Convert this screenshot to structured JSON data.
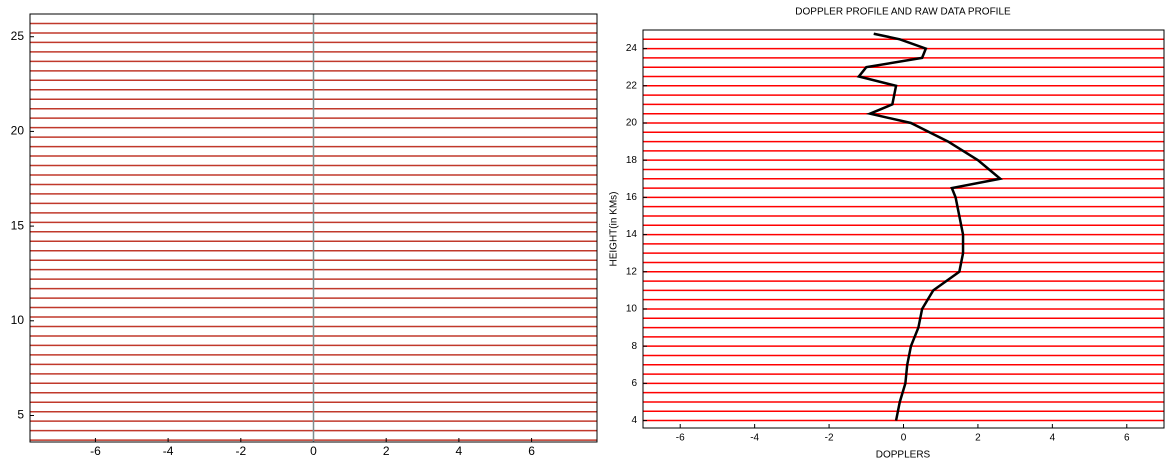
{
  "chart_data": [
    {
      "type": "spectra",
      "line_color": "#c0392b",
      "zero_line_color": "#7f8c8d",
      "xlim": [
        -7.8,
        7.8
      ],
      "ylim": [
        3.6,
        26.2
      ],
      "xticks": [
        -6,
        -4,
        -2,
        0,
        2,
        4,
        6
      ],
      "yticks": [
        5,
        10,
        15,
        20,
        25
      ],
      "gates": [
        3.7,
        4.2,
        4.7,
        5.2,
        5.7,
        6.2,
        6.7,
        7.2,
        7.7,
        8.2,
        8.7,
        9.2,
        9.7,
        10.2,
        10.7,
        11.2,
        11.7,
        12.2,
        12.7,
        13.2,
        13.7,
        14.2,
        14.7,
        15.2,
        15.7,
        16.2,
        16.7,
        17.2,
        17.7,
        18.2,
        18.7,
        19.2,
        19.7,
        20.2,
        20.7,
        21.2,
        21.7,
        22.2,
        22.7,
        23.2,
        23.7,
        24.2,
        24.7,
        25.2,
        25.7
      ]
    },
    {
      "type": "profile",
      "title": "DOPPLER PROFILE AND RAW DATA PROFILE",
      "xlabel": "DOPPLERS",
      "ylabel": "HEIGHT(in KMs)",
      "line_color": "#ff0000",
      "profile_color": "#000000",
      "xlim": [
        -7,
        7
      ],
      "ylim": [
        3.6,
        25
      ],
      "xticks": [
        -6,
        -4,
        -2,
        0,
        2,
        4,
        6
      ],
      "yticks": [
        4,
        6,
        8,
        10,
        12,
        14,
        16,
        18,
        20,
        22,
        24
      ],
      "gates": [
        4,
        4.5,
        5,
        5.5,
        6,
        6.5,
        7,
        7.5,
        8,
        8.5,
        9,
        9.5,
        10,
        10.5,
        11,
        11.5,
        12,
        12.5,
        13,
        13.5,
        14,
        14.5,
        15,
        15.5,
        16,
        16.5,
        17,
        17.5,
        18,
        18.5,
        19,
        19.5,
        20,
        20.5,
        21,
        21.5,
        22,
        22.5,
        23,
        23.5,
        24,
        24.5
      ],
      "profile": {
        "x": [
          -0.2,
          -0.1,
          0.05,
          0.1,
          0.2,
          0.4,
          0.5,
          0.8,
          1.5,
          1.6,
          1.6,
          1.5,
          1.4,
          1.3,
          2.6,
          2.0,
          1.2,
          0.2,
          -0.9,
          -0.3,
          -0.2,
          -1.2,
          -1.0,
          0.5,
          0.6,
          -0.1,
          -0.8
        ],
        "y": [
          4,
          5,
          6,
          7,
          8,
          9,
          10,
          11,
          12,
          13,
          14,
          15,
          16,
          16.5,
          17,
          18,
          19,
          20,
          20.5,
          21,
          22,
          22.5,
          23,
          23.5,
          24,
          24.5,
          24.8
        ]
      }
    }
  ]
}
